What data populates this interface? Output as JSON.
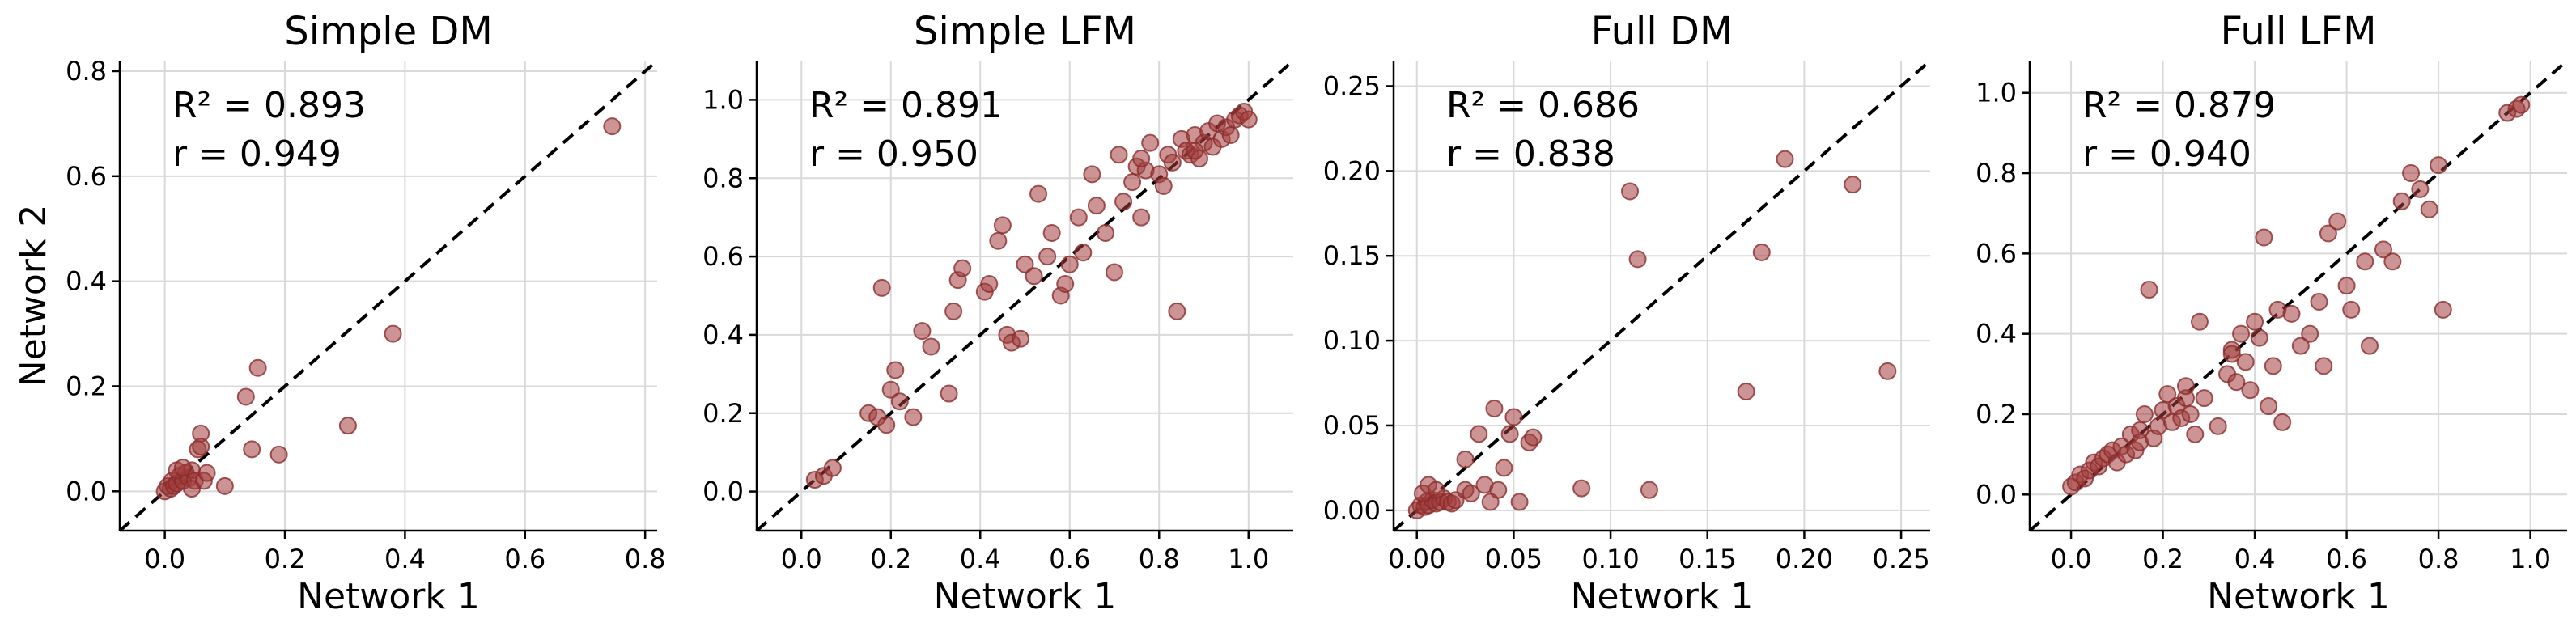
{
  "chart_data": [
    {
      "type": "scatter",
      "title": "Simple DM",
      "xlabel": "Network 1",
      "ylabel": "Network 2",
      "xlim": [
        -0.075,
        0.82
      ],
      "ylim": [
        -0.075,
        0.82
      ],
      "xticks": [
        "0.0",
        "0.2",
        "0.4",
        "0.6",
        "0.8"
      ],
      "yticks": [
        "0.0",
        "0.2",
        "0.4",
        "0.6",
        "0.8"
      ],
      "xtick_values": [
        0.0,
        0.2,
        0.4,
        0.6,
        0.8
      ],
      "ytick_values": [
        0.0,
        0.2,
        0.4,
        0.6,
        0.8
      ],
      "stats": {
        "r2": "R² = 0.893",
        "r": "r = 0.949"
      },
      "grid": true,
      "reference_line": "y = x (dashed)",
      "points": [
        [
          0.0,
          0.0
        ],
        [
          0.005,
          0.01
        ],
        [
          0.01,
          0.005
        ],
        [
          0.012,
          0.02
        ],
        [
          0.015,
          0.01
        ],
        [
          0.02,
          0.015
        ],
        [
          0.025,
          0.03
        ],
        [
          0.03,
          0.02
        ],
        [
          0.035,
          0.035
        ],
        [
          0.04,
          0.025
        ],
        [
          0.045,
          0.04
        ],
        [
          0.05,
          0.02
        ],
        [
          0.055,
          0.08
        ],
        [
          0.06,
          0.11
        ],
        [
          0.06,
          0.085
        ],
        [
          0.065,
          0.02
        ],
        [
          0.07,
          0.035
        ],
        [
          0.02,
          0.04
        ],
        [
          0.03,
          0.045
        ],
        [
          0.045,
          0.005
        ],
        [
          0.1,
          0.01
        ],
        [
          0.135,
          0.18
        ],
        [
          0.145,
          0.08
        ],
        [
          0.155,
          0.235
        ],
        [
          0.19,
          0.07
        ],
        [
          0.305,
          0.125
        ],
        [
          0.38,
          0.3
        ],
        [
          0.745,
          0.695
        ]
      ]
    },
    {
      "type": "scatter",
      "title": "Simple LFM",
      "xlabel": "Network 1",
      "ylabel": "",
      "xlim": [
        -0.1,
        1.1
      ],
      "ylim": [
        -0.1,
        1.1
      ],
      "xticks": [
        "0.0",
        "0.2",
        "0.4",
        "0.6",
        "0.8",
        "1.0"
      ],
      "yticks": [
        "0.0",
        "0.2",
        "0.4",
        "0.6",
        "0.8",
        "1.0"
      ],
      "xtick_values": [
        0.0,
        0.2,
        0.4,
        0.6,
        0.8,
        1.0
      ],
      "ytick_values": [
        0.0,
        0.2,
        0.4,
        0.6,
        0.8,
        1.0
      ],
      "stats": {
        "r2": "R² = 0.891",
        "r": "r = 0.950"
      },
      "grid": true,
      "reference_line": "y = x (dashed)",
      "points": [
        [
          0.03,
          0.03
        ],
        [
          0.05,
          0.04
        ],
        [
          0.07,
          0.06
        ],
        [
          0.15,
          0.2
        ],
        [
          0.17,
          0.19
        ],
        [
          0.18,
          0.52
        ],
        [
          0.19,
          0.17
        ],
        [
          0.2,
          0.26
        ],
        [
          0.21,
          0.31
        ],
        [
          0.22,
          0.23
        ],
        [
          0.25,
          0.19
        ],
        [
          0.27,
          0.41
        ],
        [
          0.29,
          0.37
        ],
        [
          0.33,
          0.25
        ],
        [
          0.34,
          0.46
        ],
        [
          0.35,
          0.54
        ],
        [
          0.36,
          0.57
        ],
        [
          0.41,
          0.51
        ],
        [
          0.42,
          0.53
        ],
        [
          0.44,
          0.64
        ],
        [
          0.45,
          0.68
        ],
        [
          0.46,
          0.4
        ],
        [
          0.47,
          0.38
        ],
        [
          0.49,
          0.39
        ],
        [
          0.5,
          0.58
        ],
        [
          0.52,
          0.55
        ],
        [
          0.53,
          0.76
        ],
        [
          0.55,
          0.6
        ],
        [
          0.56,
          0.66
        ],
        [
          0.58,
          0.5
        ],
        [
          0.59,
          0.53
        ],
        [
          0.6,
          0.58
        ],
        [
          0.62,
          0.7
        ],
        [
          0.63,
          0.61
        ],
        [
          0.65,
          0.81
        ],
        [
          0.66,
          0.73
        ],
        [
          0.68,
          0.66
        ],
        [
          0.7,
          0.56
        ],
        [
          0.71,
          0.86
        ],
        [
          0.72,
          0.74
        ],
        [
          0.74,
          0.79
        ],
        [
          0.75,
          0.83
        ],
        [
          0.76,
          0.7
        ],
        [
          0.77,
          0.82
        ],
        [
          0.78,
          0.89
        ],
        [
          0.8,
          0.81
        ],
        [
          0.82,
          0.86
        ],
        [
          0.83,
          0.84
        ],
        [
          0.84,
          0.46
        ],
        [
          0.85,
          0.9
        ],
        [
          0.86,
          0.87
        ],
        [
          0.87,
          0.86
        ],
        [
          0.88,
          0.91
        ],
        [
          0.89,
          0.85
        ],
        [
          0.9,
          0.89
        ],
        [
          0.91,
          0.92
        ],
        [
          0.92,
          0.88
        ],
        [
          0.93,
          0.94
        ],
        [
          0.94,
          0.9
        ],
        [
          0.95,
          0.93
        ],
        [
          0.96,
          0.91
        ],
        [
          0.97,
          0.95
        ],
        [
          0.98,
          0.96
        ],
        [
          0.99,
          0.97
        ],
        [
          1.0,
          0.95
        ],
        [
          0.76,
          0.85
        ],
        [
          0.81,
          0.78
        ],
        [
          0.88,
          0.87
        ]
      ]
    },
    {
      "type": "scatter",
      "title": "Full DM",
      "xlabel": "Network 1",
      "ylabel": "",
      "xlim": [
        -0.012,
        0.265
      ],
      "ylim": [
        -0.012,
        0.265
      ],
      "xticks": [
        "0.00",
        "0.05",
        "0.10",
        "0.15",
        "0.20",
        "0.25"
      ],
      "yticks": [
        "0.00",
        "0.05",
        "0.10",
        "0.15",
        "0.20",
        "0.25"
      ],
      "xtick_values": [
        0.0,
        0.05,
        0.1,
        0.15,
        0.2,
        0.25
      ],
      "ytick_values": [
        0.0,
        0.05,
        0.1,
        0.15,
        0.2,
        0.25
      ],
      "stats": {
        "r2": "R² = 0.686",
        "r": "r = 0.838"
      },
      "grid": true,
      "reference_line": "y = x (dashed)",
      "points": [
        [
          0.0,
          0.0
        ],
        [
          0.002,
          0.003
        ],
        [
          0.004,
          0.002
        ],
        [
          0.005,
          0.005
        ],
        [
          0.006,
          0.003
        ],
        [
          0.008,
          0.006
        ],
        [
          0.01,
          0.004
        ],
        [
          0.012,
          0.005
        ],
        [
          0.014,
          0.007
        ],
        [
          0.016,
          0.005
        ],
        [
          0.018,
          0.004
        ],
        [
          0.02,
          0.006
        ],
        [
          0.003,
          0.01
        ],
        [
          0.006,
          0.015
        ],
        [
          0.01,
          0.012
        ],
        [
          0.025,
          0.012
        ],
        [
          0.025,
          0.03
        ],
        [
          0.028,
          0.01
        ],
        [
          0.032,
          0.045
        ],
        [
          0.035,
          0.015
        ],
        [
          0.038,
          0.005
        ],
        [
          0.04,
          0.06
        ],
        [
          0.042,
          0.012
        ],
        [
          0.045,
          0.025
        ],
        [
          0.048,
          0.045
        ],
        [
          0.05,
          0.055
        ],
        [
          0.053,
          0.005
        ],
        [
          0.058,
          0.04
        ],
        [
          0.06,
          0.043
        ],
        [
          0.085,
          0.013
        ],
        [
          0.11,
          0.188
        ],
        [
          0.114,
          0.148
        ],
        [
          0.12,
          0.012
        ],
        [
          0.17,
          0.07
        ],
        [
          0.178,
          0.152
        ],
        [
          0.19,
          0.207
        ],
        [
          0.225,
          0.192
        ],
        [
          0.243,
          0.082
        ]
      ]
    },
    {
      "type": "scatter",
      "title": "Full LFM",
      "xlabel": "Network 1",
      "ylabel": "",
      "xlim": [
        -0.09,
        1.08
      ],
      "ylim": [
        -0.09,
        1.08
      ],
      "xticks": [
        "0.0",
        "0.2",
        "0.4",
        "0.6",
        "0.8",
        "1.0"
      ],
      "yticks": [
        "0.0",
        "0.2",
        "0.4",
        "0.6",
        "0.8",
        "1.0"
      ],
      "xtick_values": [
        0.0,
        0.2,
        0.4,
        0.6,
        0.8,
        1.0
      ],
      "ytick_values": [
        0.0,
        0.2,
        0.4,
        0.6,
        0.8,
        1.0
      ],
      "stats": {
        "r2": "R² = 0.879",
        "r": "r = 0.940"
      },
      "grid": true,
      "reference_line": "y = x (dashed)",
      "points": [
        [
          0.0,
          0.02
        ],
        [
          0.01,
          0.03
        ],
        [
          0.02,
          0.05
        ],
        [
          0.03,
          0.04
        ],
        [
          0.04,
          0.06
        ],
        [
          0.05,
          0.08
        ],
        [
          0.06,
          0.07
        ],
        [
          0.07,
          0.09
        ],
        [
          0.08,
          0.1
        ],
        [
          0.09,
          0.11
        ],
        [
          0.1,
          0.08
        ],
        [
          0.11,
          0.12
        ],
        [
          0.12,
          0.1
        ],
        [
          0.13,
          0.15
        ],
        [
          0.14,
          0.11
        ],
        [
          0.15,
          0.13
        ],
        [
          0.16,
          0.2
        ],
        [
          0.17,
          0.51
        ],
        [
          0.18,
          0.14
        ],
        [
          0.19,
          0.17
        ],
        [
          0.2,
          0.21
        ],
        [
          0.21,
          0.25
        ],
        [
          0.22,
          0.18
        ],
        [
          0.23,
          0.22
        ],
        [
          0.24,
          0.19
        ],
        [
          0.25,
          0.24
        ],
        [
          0.26,
          0.2
        ],
        [
          0.27,
          0.15
        ],
        [
          0.28,
          0.43
        ],
        [
          0.29,
          0.24
        ],
        [
          0.32,
          0.17
        ],
        [
          0.34,
          0.3
        ],
        [
          0.35,
          0.36
        ],
        [
          0.36,
          0.28
        ],
        [
          0.37,
          0.4
        ],
        [
          0.38,
          0.33
        ],
        [
          0.39,
          0.26
        ],
        [
          0.4,
          0.43
        ],
        [
          0.41,
          0.39
        ],
        [
          0.42,
          0.64
        ],
        [
          0.43,
          0.22
        ],
        [
          0.44,
          0.32
        ],
        [
          0.45,
          0.46
        ],
        [
          0.46,
          0.18
        ],
        [
          0.48,
          0.45
        ],
        [
          0.5,
          0.37
        ],
        [
          0.52,
          0.4
        ],
        [
          0.54,
          0.48
        ],
        [
          0.55,
          0.32
        ],
        [
          0.56,
          0.65
        ],
        [
          0.58,
          0.68
        ],
        [
          0.6,
          0.52
        ],
        [
          0.61,
          0.46
        ],
        [
          0.64,
          0.58
        ],
        [
          0.65,
          0.37
        ],
        [
          0.68,
          0.61
        ],
        [
          0.7,
          0.58
        ],
        [
          0.72,
          0.73
        ],
        [
          0.74,
          0.8
        ],
        [
          0.76,
          0.76
        ],
        [
          0.78,
          0.71
        ],
        [
          0.8,
          0.82
        ],
        [
          0.81,
          0.46
        ],
        [
          0.95,
          0.95
        ],
        [
          0.97,
          0.96
        ],
        [
          0.98,
          0.97
        ],
        [
          0.15,
          0.16
        ],
        [
          0.25,
          0.27
        ],
        [
          0.35,
          0.35
        ]
      ]
    }
  ]
}
